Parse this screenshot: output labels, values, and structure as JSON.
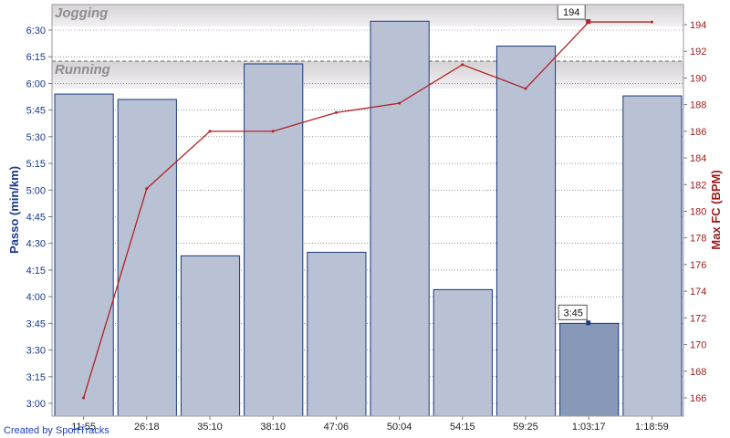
{
  "chart_data": {
    "type": "bar",
    "categories": [
      "11:55",
      "26:18",
      "35:10",
      "38:10",
      "47:06",
      "50:04",
      "54:15",
      "59:25",
      "1:03:17",
      "1:18:59"
    ],
    "series": [
      {
        "name": "Passo (min/km)",
        "axis": "left",
        "type": "bar",
        "values": [
          "5:54",
          "5:51",
          "4:23",
          "6:11",
          "4:25",
          "6:35",
          "4:04",
          "6:21",
          "3:45",
          "5:53"
        ],
        "values_seconds": [
          354,
          351,
          263,
          371,
          265,
          395,
          244,
          381,
          225,
          353
        ]
      },
      {
        "name": "Max FC (BPM)",
        "axis": "right",
        "type": "line",
        "values": [
          166,
          181.7,
          186,
          186,
          187.4,
          188.1,
          191,
          189.2,
          194.2,
          194.2
        ]
      }
    ],
    "ylabel": "Passo (min/km)",
    "y2label": "Max FC (BPM)",
    "yticks": [
      "3:00",
      "3:15",
      "3:30",
      "3:45",
      "4:00",
      "4:15",
      "4:30",
      "4:45",
      "5:00",
      "5:15",
      "5:30",
      "5:45",
      "6:00",
      "6:15",
      "6:30"
    ],
    "y2ticks": [
      166,
      168,
      170,
      172,
      174,
      176,
      178,
      180,
      182,
      184,
      186,
      188,
      190,
      192,
      194
    ],
    "bands": [
      {
        "label": "Jogging"
      },
      {
        "label": "Running"
      }
    ],
    "highlighted_bar": {
      "category": "1:03:17",
      "label": "3:45"
    },
    "line_callout": {
      "category": "1:03:17",
      "label": "194"
    },
    "colors": {
      "bar": "#b9c1d5",
      "bar_stroke": "#1a3a7a",
      "bar_highlight": "#8898b8",
      "line": "#b22222",
      "left_axis": "#1a3a8a",
      "right_axis": "#9b1c1c"
    }
  },
  "footer": {
    "credit": "Created by SportTracks"
  }
}
